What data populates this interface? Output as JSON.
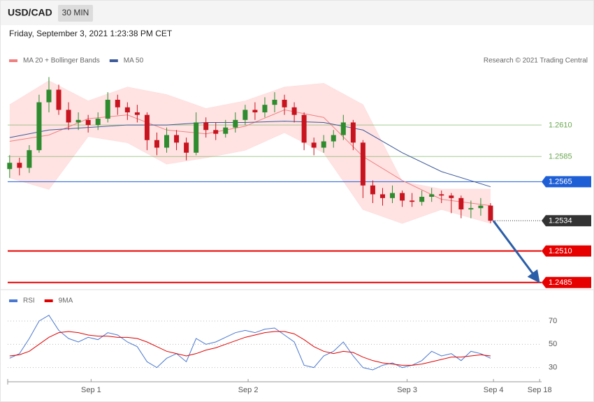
{
  "header": {
    "symbol": "USD/CAD",
    "timeframe": "30 MIN",
    "date": "Friday, September 3, 2021 1:23:38 PM CET",
    "credit": "Research © 2021 Trading Central"
  },
  "chart_data": [
    {
      "type": "candlestick",
      "x": [
        0,
        1,
        2,
        3,
        4,
        5,
        6,
        7,
        8,
        9,
        10,
        11,
        12,
        13,
        14,
        15,
        16,
        17,
        18,
        19,
        20,
        21,
        22,
        23,
        24,
        25,
        26,
        27,
        28,
        29,
        30,
        31,
        32,
        33,
        34,
        35,
        36,
        37,
        38,
        39,
        40,
        41,
        42,
        43,
        44,
        45,
        46,
        47,
        48,
        49
      ],
      "candles": [
        [
          1.2575,
          1.2586,
          1.2568,
          1.258
        ],
        [
          1.258,
          1.2584,
          1.257,
          1.2576
        ],
        [
          1.2576,
          1.2594,
          1.2572,
          1.259
        ],
        [
          1.259,
          1.2634,
          1.2588,
          1.2628
        ],
        [
          1.2628,
          1.2648,
          1.262,
          1.2638
        ],
        [
          1.2638,
          1.2642,
          1.2618,
          1.2622
        ],
        [
          1.2622,
          1.2628,
          1.2606,
          1.2612
        ],
        [
          1.2612,
          1.262,
          1.2606,
          1.2614
        ],
        [
          1.2614,
          1.2618,
          1.2604,
          1.261
        ],
        [
          1.261,
          1.262,
          1.2606,
          1.2615
        ],
        [
          1.2615,
          1.2636,
          1.2612,
          1.263
        ],
        [
          1.263,
          1.2634,
          1.2618,
          1.2624
        ],
        [
          1.2624,
          1.2628,
          1.2614,
          1.262
        ],
        [
          1.262,
          1.2626,
          1.2612,
          1.2618
        ],
        [
          1.2618,
          1.262,
          1.259,
          1.2598
        ],
        [
          1.2598,
          1.2604,
          1.2586,
          1.2592
        ],
        [
          1.2592,
          1.2608,
          1.2588,
          1.2602
        ],
        [
          1.2602,
          1.2606,
          1.259,
          1.2596
        ],
        [
          1.2596,
          1.26,
          1.2582,
          1.2588
        ],
        [
          1.2588,
          1.262,
          1.2586,
          1.2612
        ],
        [
          1.2612,
          1.2616,
          1.26,
          1.2606
        ],
        [
          1.2606,
          1.2612,
          1.2598,
          1.2603
        ],
        [
          1.2603,
          1.2614,
          1.26,
          1.2608
        ],
        [
          1.2608,
          1.262,
          1.2604,
          1.2614
        ],
        [
          1.2614,
          1.2626,
          1.261,
          1.2622
        ],
        [
          1.2622,
          1.2628,
          1.2614,
          1.262
        ],
        [
          1.262,
          1.2632,
          1.2616,
          1.2626
        ],
        [
          1.2626,
          1.2636,
          1.262,
          1.263
        ],
        [
          1.263,
          1.2634,
          1.2618,
          1.2624
        ],
        [
          1.2624,
          1.2628,
          1.2612,
          1.2618
        ],
        [
          1.2618,
          1.262,
          1.259,
          1.2596
        ],
        [
          1.2596,
          1.26,
          1.2586,
          1.2592
        ],
        [
          1.2592,
          1.2602,
          1.2588,
          1.2597
        ],
        [
          1.2597,
          1.2606,
          1.2592,
          1.2602
        ],
        [
          1.2602,
          1.2618,
          1.2598,
          1.2612
        ],
        [
          1.2612,
          1.2614,
          1.259,
          1.2596
        ],
        [
          1.2596,
          1.2598,
          1.2552,
          1.2562
        ],
        [
          1.2562,
          1.2566,
          1.2548,
          1.2555
        ],
        [
          1.2555,
          1.256,
          1.2546,
          1.2552
        ],
        [
          1.2552,
          1.2562,
          1.2548,
          1.2556
        ],
        [
          1.2556,
          1.2558,
          1.2545,
          1.255
        ],
        [
          1.255,
          1.2556,
          1.2545,
          1.2549
        ],
        [
          1.2549,
          1.2558,
          1.2546,
          1.2553
        ],
        [
          1.2553,
          1.256,
          1.2549,
          1.2555
        ],
        [
          1.2555,
          1.2558,
          1.2548,
          1.2554
        ],
        [
          1.2554,
          1.2556,
          1.254,
          1.2552
        ],
        [
          1.2552,
          1.2554,
          1.2536,
          1.2543
        ],
        [
          1.2543,
          1.255,
          1.2536,
          1.2544
        ],
        [
          1.2544,
          1.2552,
          1.2538,
          1.2546
        ],
        [
          1.2546,
          1.2548,
          1.2532,
          1.2534
        ]
      ],
      "up_color": "#2e8b2e",
      "down_color": "#c8141e",
      "series": [
        {
          "name": "MA 20 + Bollinger Bands",
          "color": "#f08080",
          "band_color": "#ffdede",
          "x": [
            0,
            4,
            8,
            12,
            16,
            20,
            24,
            28,
            32,
            36,
            40,
            44,
            49
          ],
          "values": [
            1.2597,
            1.2602,
            1.2615,
            1.2618,
            1.2606,
            1.2603,
            1.2609,
            1.2622,
            1.2616,
            1.2585,
            1.2566,
            1.2551,
            1.2546
          ],
          "upper": [
            1.2626,
            1.2645,
            1.2629,
            1.264,
            1.2634,
            1.2623,
            1.2629,
            1.264,
            1.2643,
            1.2626,
            1.2565,
            1.2559,
            1.2559
          ],
          "lower": [
            1.2568,
            1.2559,
            1.2601,
            1.2596,
            1.2579,
            1.2584,
            1.259,
            1.2604,
            1.2588,
            1.2543,
            1.2532,
            1.2543,
            1.2532
          ]
        },
        {
          "name": "MA 50",
          "color": "#3d5a99",
          "x": [
            0,
            4,
            8,
            12,
            16,
            20,
            24,
            28,
            32,
            36,
            40,
            44,
            49
          ],
          "values": [
            1.26,
            1.2606,
            1.2608,
            1.261,
            1.261,
            1.2612,
            1.2612,
            1.2613,
            1.2612,
            1.2606,
            1.2588,
            1.2573,
            1.2561
          ]
        }
      ],
      "levels": [
        {
          "value": 1.261,
          "label": "1.2610",
          "color": "#6aa84f",
          "style": "thin",
          "box": false
        },
        {
          "value": 1.2585,
          "label": "1.2585",
          "color": "#6aa84f",
          "style": "thin",
          "box": false
        },
        {
          "value": 1.2565,
          "label": "1.2565",
          "color": "#1f5fd6",
          "style": "solid",
          "box": true
        },
        {
          "value": 1.2534,
          "label": "1.2534",
          "color": "#333333",
          "style": "dotted",
          "box": true
        },
        {
          "value": 1.251,
          "label": "1.2510",
          "color": "#e60000",
          "style": "thick",
          "box": true
        },
        {
          "value": 1.2485,
          "label": "1.2485",
          "color": "#e60000",
          "style": "thick",
          "box": true
        }
      ],
      "arrow_color": "#2b5ea8",
      "xlim": [
        -0.2,
        54.2
      ],
      "ylim": [
        1.2481,
        1.2656
      ],
      "xticks": [
        {
          "value": 8.3,
          "label": "Sep 1"
        },
        {
          "value": 24.3,
          "label": "Sep 2"
        },
        {
          "value": 40.5,
          "label": "Sep 3"
        },
        {
          "value": 49.3,
          "label": "Sep 4"
        },
        {
          "value": 54,
          "label": "Sep 18"
        }
      ]
    },
    {
      "type": "line",
      "x": [
        0,
        1,
        2,
        3,
        4,
        5,
        6,
        7,
        8,
        9,
        10,
        11,
        12,
        13,
        14,
        15,
        16,
        17,
        18,
        19,
        20,
        21,
        22,
        23,
        24,
        25,
        26,
        27,
        28,
        29,
        30,
        31,
        32,
        33,
        34,
        35,
        36,
        37,
        38,
        39,
        40,
        41,
        42,
        43,
        44,
        45,
        46,
        47,
        48,
        49
      ],
      "series": [
        {
          "name": "RSI",
          "color": "#4a78d0",
          "values": [
            38,
            42,
            55,
            70,
            75,
            62,
            55,
            52,
            56,
            54,
            60,
            58,
            52,
            48,
            35,
            30,
            38,
            42,
            35,
            55,
            50,
            52,
            56,
            60,
            62,
            60,
            63,
            64,
            58,
            52,
            32,
            30,
            40,
            44,
            52,
            40,
            30,
            28,
            32,
            34,
            30,
            32,
            36,
            44,
            40,
            42,
            36,
            44,
            42,
            38
          ]
        },
        {
          "name": "9MA",
          "color": "#e00000",
          "values": [
            40,
            41,
            44,
            50,
            56,
            60,
            61,
            60,
            58,
            57,
            57,
            56,
            56,
            55,
            52,
            48,
            44,
            42,
            40,
            42,
            45,
            47,
            50,
            53,
            56,
            58,
            60,
            61,
            61,
            59,
            54,
            48,
            44,
            42,
            44,
            43,
            39,
            36,
            34,
            33,
            32,
            32,
            33,
            35,
            37,
            39,
            39,
            40,
            41,
            40
          ]
        }
      ],
      "xlim": [
        -0.2,
        54.2
      ],
      "ylim": [
        22,
        82
      ],
      "yticks": [
        30,
        50,
        70
      ],
      "grid": true
    }
  ]
}
